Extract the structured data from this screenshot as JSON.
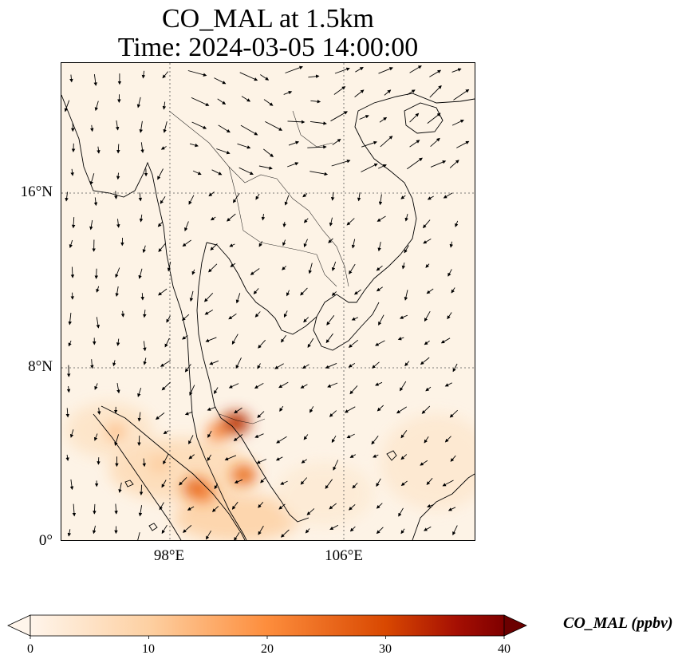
{
  "title_line1": "CO_MAL at 1.5km",
  "title_line2": "Time: 2024-03-05 14:00:00",
  "map": {
    "extent": {
      "lon_min": 93,
      "lon_max": 112,
      "lat_min": 0,
      "lat_max": 22
    },
    "lat_ticks": [
      {
        "value": 16,
        "label": "16°N"
      },
      {
        "value": 8,
        "label": "8°N"
      },
      {
        "value": 0,
        "label": "0°"
      }
    ],
    "lon_ticks": [
      {
        "value": 98,
        "label": "98°E"
      },
      {
        "value": 106,
        "label": "106°E"
      }
    ],
    "gridlines": "dotted",
    "hotspots": [
      {
        "lon": 99.2,
        "lat": 2.4,
        "value": 28
      },
      {
        "lon": 99.5,
        "lat": 2.2,
        "value": 24
      },
      {
        "lon": 101.0,
        "lat": 5.4,
        "value": 34
      },
      {
        "lon": 101.4,
        "lat": 3.0,
        "value": 26
      },
      {
        "lon": 95.5,
        "lat": 5.0,
        "value": 14
      },
      {
        "lon": 97.5,
        "lat": 3.5,
        "value": 12
      },
      {
        "lon": 100.2,
        "lat": 5.0,
        "value": 22
      }
    ]
  },
  "colorbar": {
    "label": "CO_MAL (ppbv)",
    "min": 0,
    "max": 40,
    "ticks": [
      "0",
      "10",
      "20",
      "30",
      "40"
    ],
    "colormap": [
      "#fff5eb",
      "#fdd0a2",
      "#fd8d3c",
      "#d94801",
      "#8c0a04",
      "#6b0000"
    ]
  }
}
